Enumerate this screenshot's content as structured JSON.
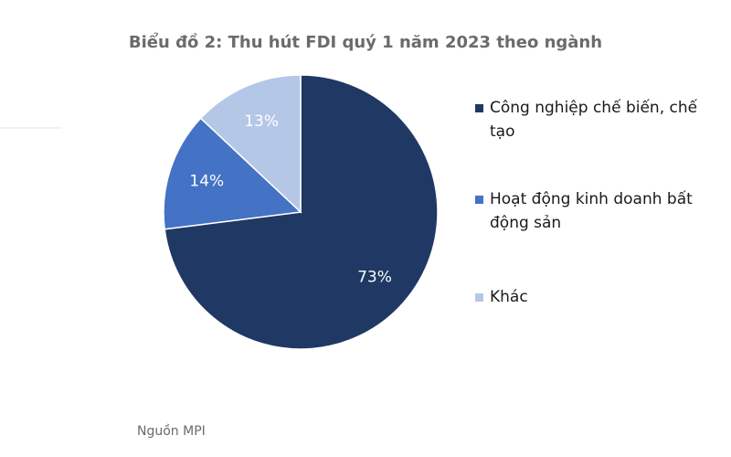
{
  "chart_data": {
    "type": "pie",
    "title": "Biểu đồ 2:  Thu hút FDI quý 1 năm 2023 theo ngành",
    "source": "Nguồn MPI",
    "categories": [
      "Công nghiệp chế biến, chế tạo",
      "Hoạt động kinh doanh bất động sản",
      "Khác"
    ],
    "values": [
      73,
      14,
      13
    ],
    "value_labels": [
      "73%",
      "14%",
      "13%"
    ],
    "colors": [
      "#203864",
      "#4472c4",
      "#b4c7e7"
    ],
    "label_colors": [
      "#ffffff",
      "#ffffff",
      "#ffffff"
    ]
  }
}
